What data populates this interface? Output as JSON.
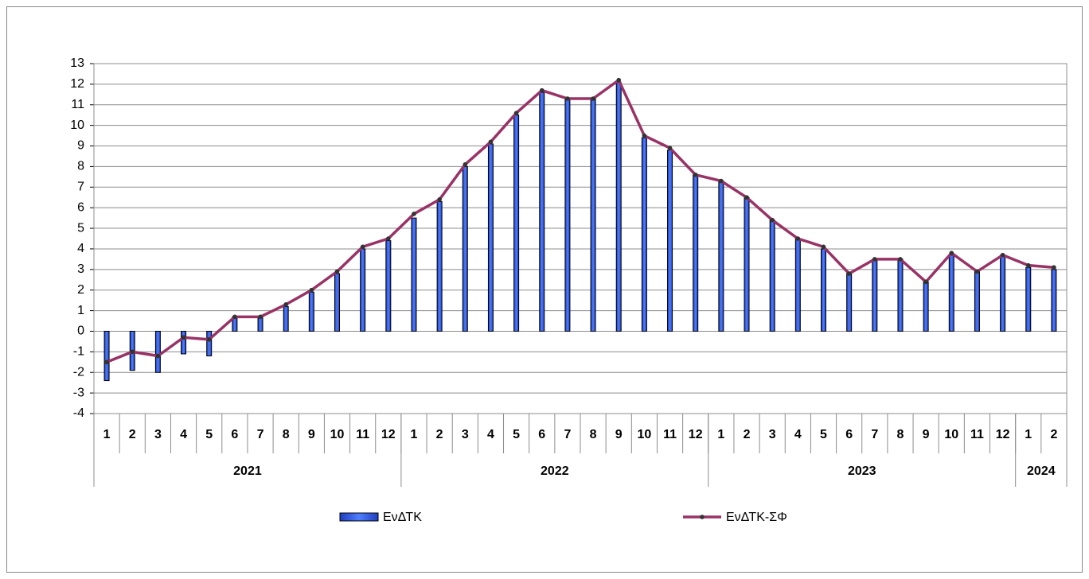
{
  "chart_data": {
    "type": "bar-line",
    "categories": [
      "1",
      "2",
      "3",
      "4",
      "5",
      "6",
      "7",
      "8",
      "9",
      "10",
      "11",
      "12",
      "1",
      "2",
      "3",
      "4",
      "5",
      "6",
      "7",
      "8",
      "9",
      "10",
      "11",
      "12",
      "1",
      "2",
      "3",
      "4",
      "5",
      "6",
      "7",
      "8",
      "9",
      "10",
      "11",
      "12",
      "1",
      "2"
    ],
    "x_groups": [
      {
        "label": "2021",
        "count": 12
      },
      {
        "label": "2022",
        "count": 12
      },
      {
        "label": "2023",
        "count": 12
      },
      {
        "label": "2024",
        "count": 2
      }
    ],
    "series": [
      {
        "name": "ΕνΔΤΚ",
        "type": "bar",
        "color": "#3366ff",
        "values": [
          -2.4,
          -1.9,
          -2.0,
          -1.1,
          -1.2,
          0.7,
          0.7,
          1.2,
          1.9,
          2.8,
          4.0,
          4.4,
          5.5,
          6.3,
          8.0,
          9.1,
          10.5,
          11.6,
          11.3,
          11.3,
          12.1,
          9.4,
          8.8,
          7.6,
          7.3,
          6.5,
          5.4,
          4.5,
          4.0,
          2.8,
          3.5,
          3.5,
          2.4,
          3.7,
          2.9,
          3.7,
          3.1,
          3.0
        ]
      },
      {
        "name": "ΕνΔΤΚ-ΣΦ",
        "type": "line",
        "color": "#993366",
        "values": [
          -1.5,
          -1.0,
          -1.2,
          -0.3,
          -0.4,
          0.7,
          0.7,
          1.3,
          2.0,
          2.9,
          4.1,
          4.5,
          5.7,
          6.4,
          8.1,
          9.2,
          10.6,
          11.7,
          11.3,
          11.3,
          12.2,
          9.5,
          8.9,
          7.6,
          7.3,
          6.5,
          5.4,
          4.5,
          4.1,
          2.8,
          3.5,
          3.5,
          2.4,
          3.8,
          2.9,
          3.7,
          3.2,
          3.1
        ]
      }
    ],
    "ylim": [
      -4,
      13
    ],
    "yticks": [
      -4,
      -3,
      -2,
      -1,
      0,
      1,
      2,
      3,
      4,
      5,
      6,
      7,
      8,
      9,
      10,
      11,
      12,
      13
    ],
    "grid": true
  }
}
